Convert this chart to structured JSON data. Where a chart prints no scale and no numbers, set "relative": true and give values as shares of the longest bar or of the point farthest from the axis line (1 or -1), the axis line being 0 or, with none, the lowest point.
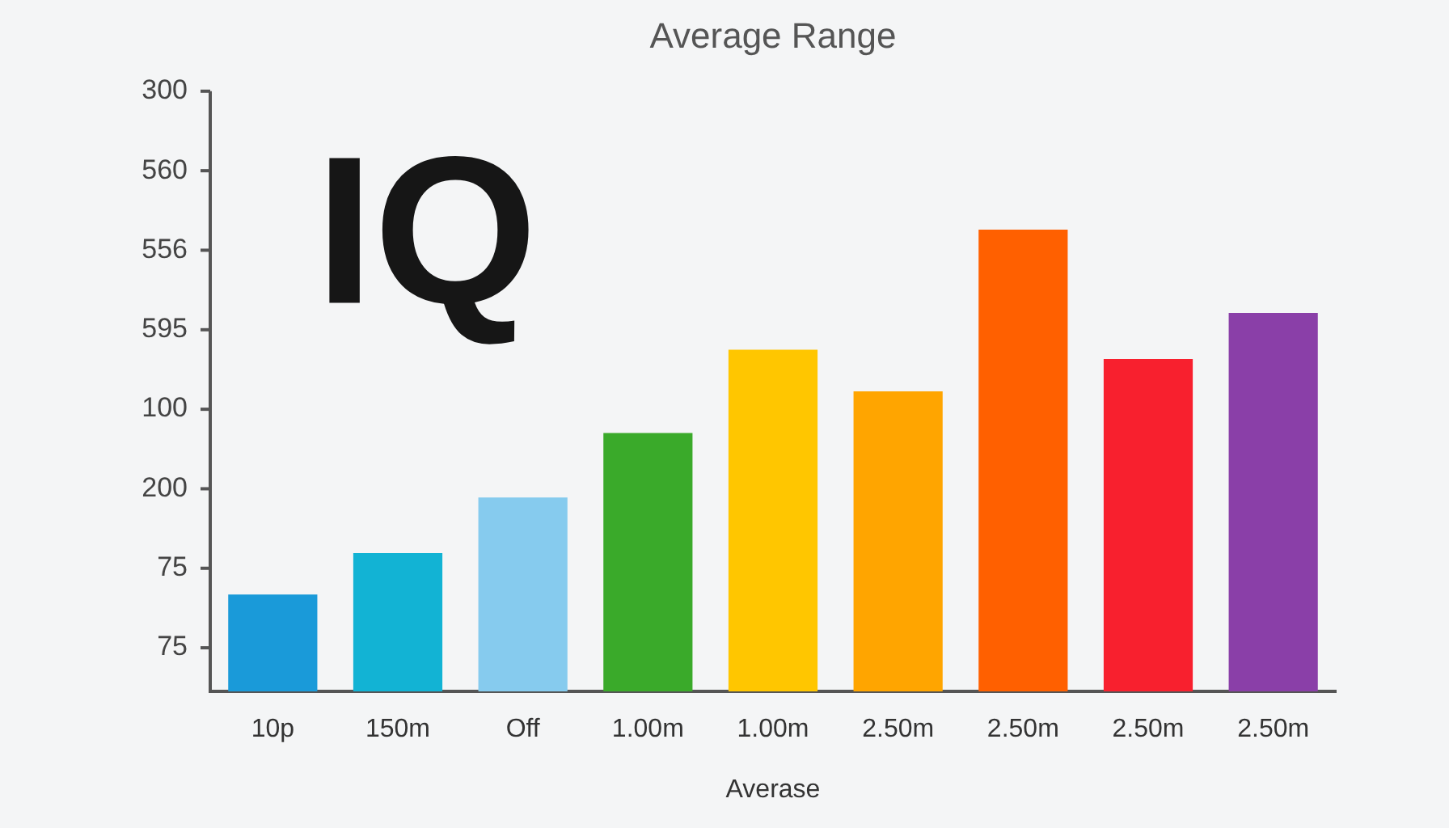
{
  "chart_data": {
    "type": "bar",
    "title": "Average Range",
    "xlabel": "Averase",
    "categories": [
      "10p",
      "150m",
      "Off",
      "1.00m",
      "1.00m",
      "2.50m",
      "2.50m",
      "2.50m",
      "2.50m"
    ],
    "values": [
      0.21,
      0.3,
      0.42,
      0.56,
      0.74,
      0.65,
      1,
      0.72,
      0.82
    ],
    "colors": [
      "#1a9ad9",
      "#12b3d4",
      "#86cbee",
      "#3aaa2a",
      "#ffc600",
      "#ffa500",
      "#ff6000",
      "#f8202e",
      "#8a3fa8"
    ],
    "relative": true,
    "annotations": [
      "IQ",
      "300",
      "560",
      "556",
      "595",
      "100",
      "200",
      "75",
      "75"
    ],
    "grid": false,
    "legend": false
  }
}
